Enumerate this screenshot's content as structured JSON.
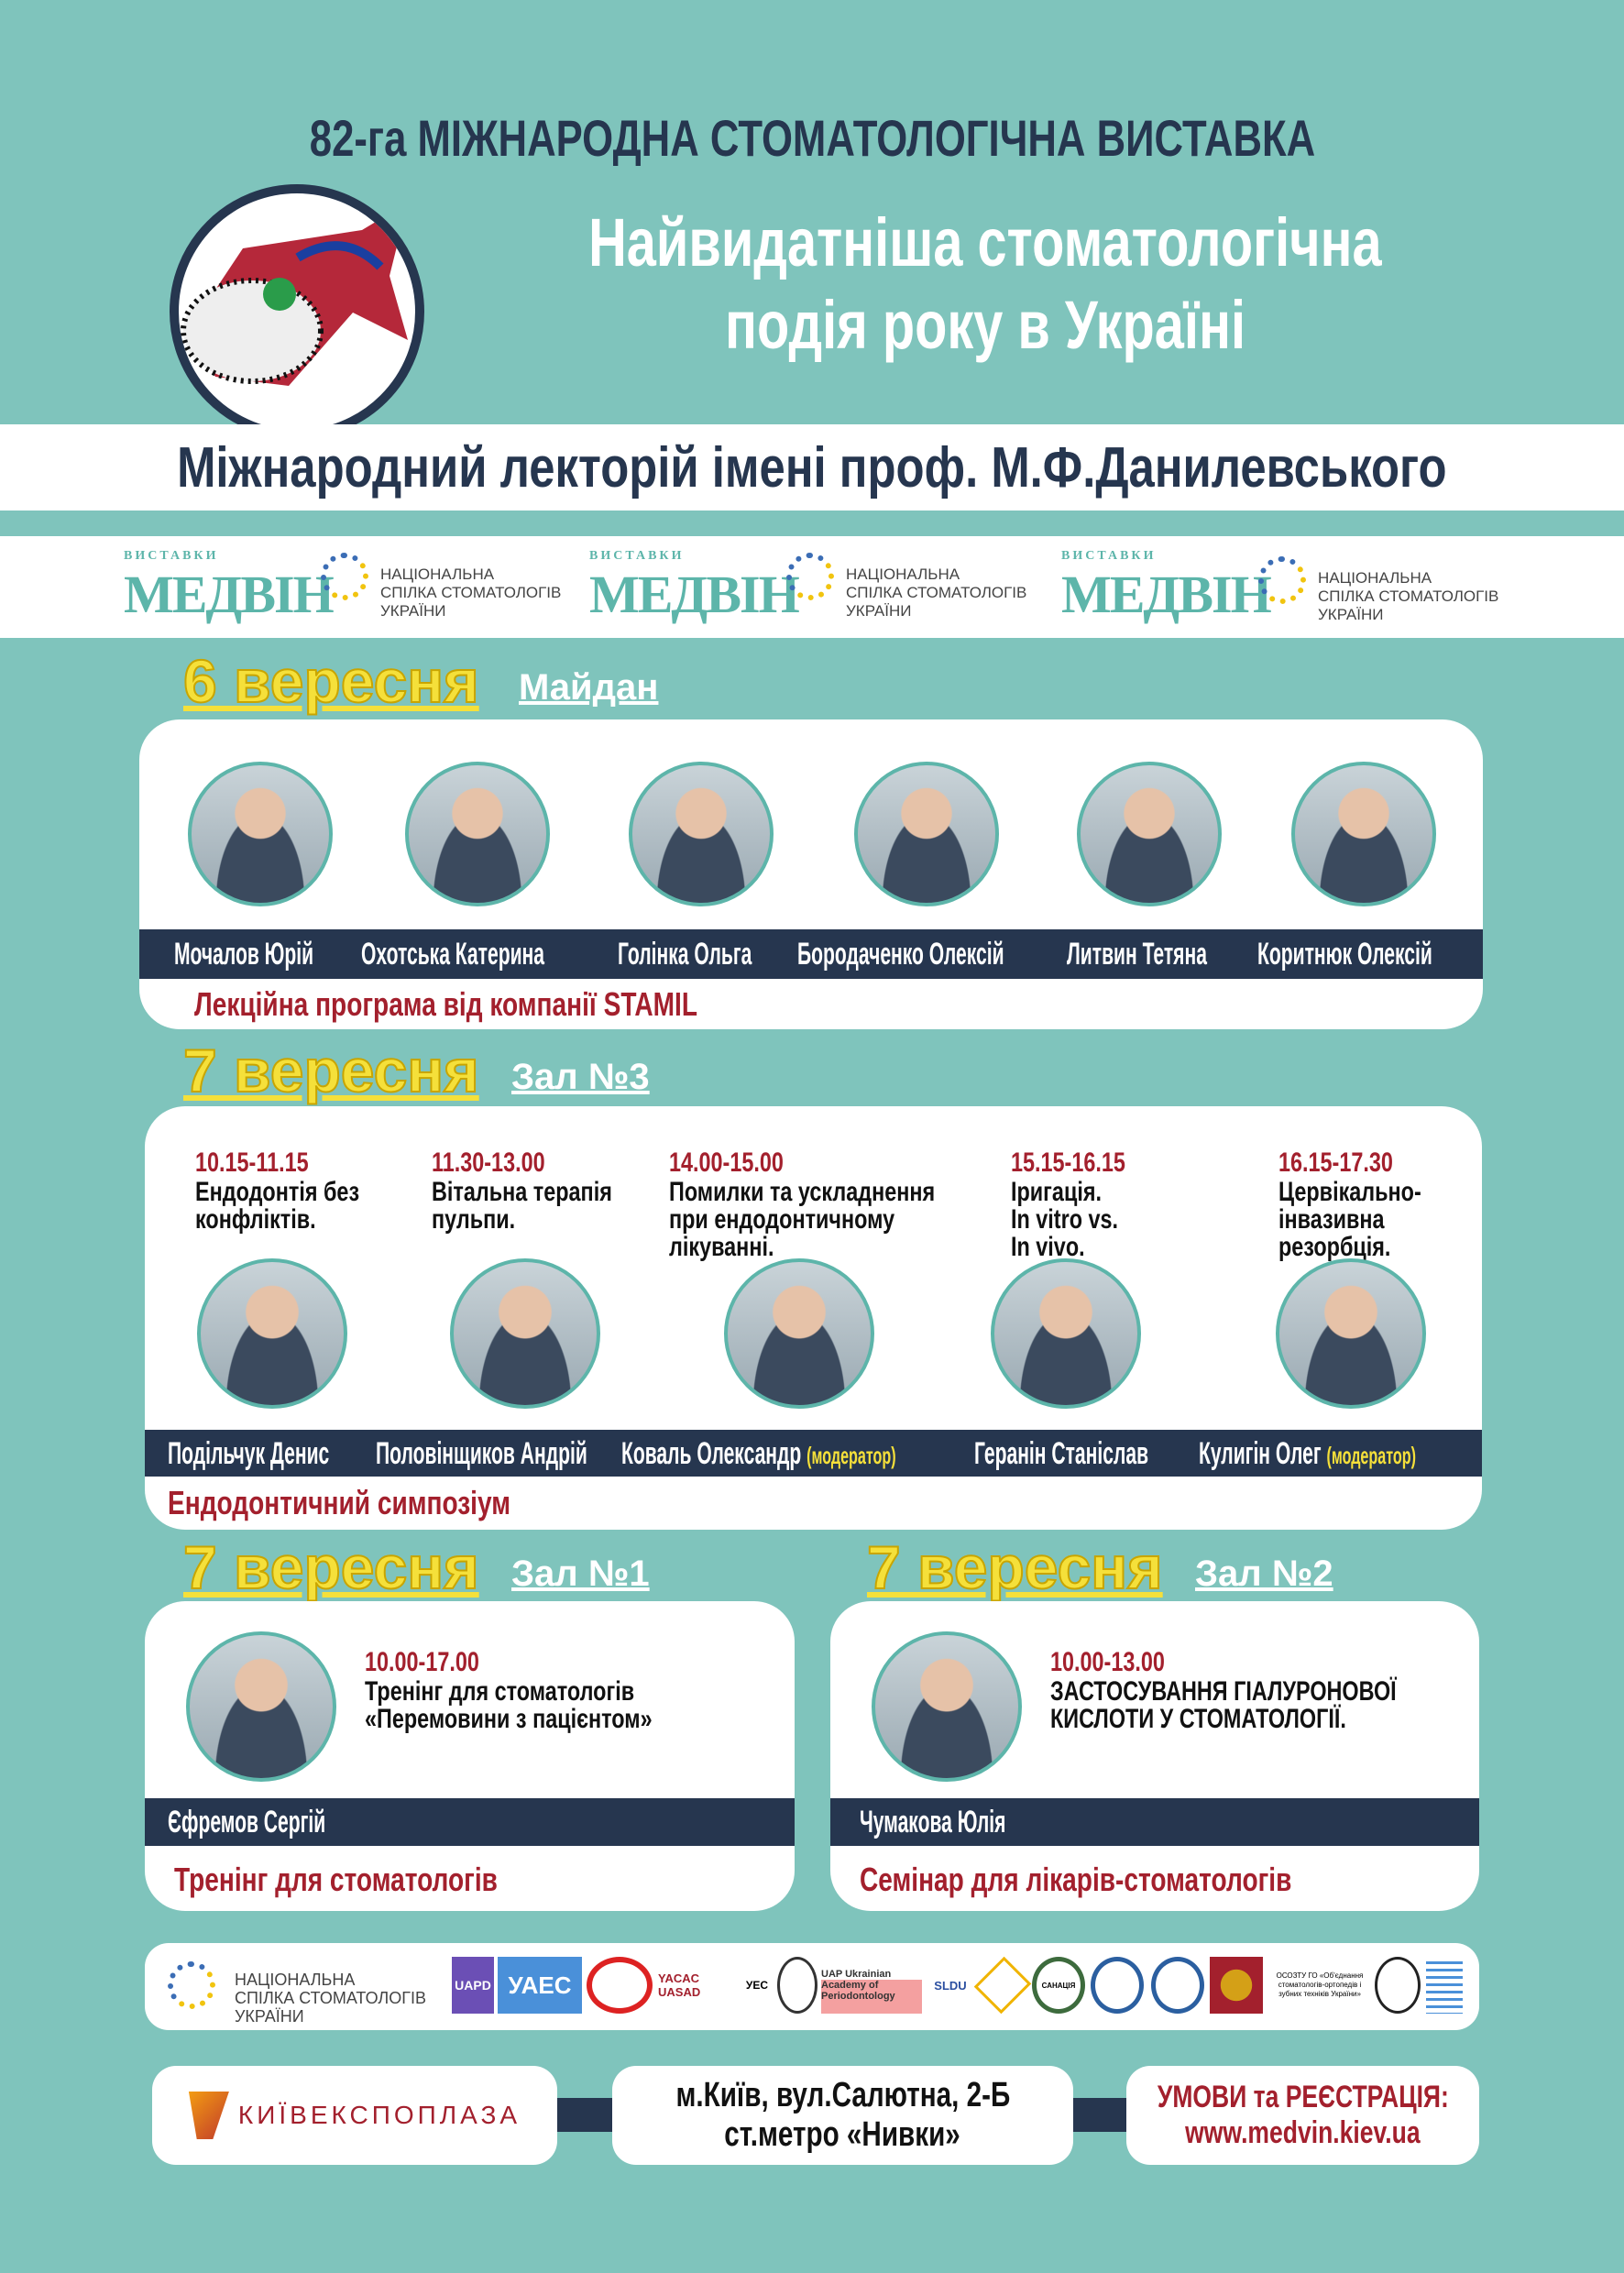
{
  "header": {
    "title": "82-га МІЖНАРОДНА СТОМАТОЛОГІЧНА ВИСТАВКА",
    "subtitle_line1": "Найвидатніша стоматологічна",
    "subtitle_line2": "подія року в Україні",
    "lectorium": "Міжнародний лекторій імені проф. М.Ф.Данилевського"
  },
  "logos_strip": [
    {
      "brand_small": "ВИСТАВКИ",
      "brand": "МЕДВІН",
      "nss": [
        "НАЦІОНАЛЬНА",
        "СПІЛКА СТОМАТОЛОГІВ",
        "УКРАЇНИ"
      ]
    },
    {
      "brand_small": "ВИСТАВКИ",
      "brand": "МЕДВІН",
      "nss": [
        "НАЦІОНАЛЬНА",
        "СПІЛКА СТОМАТОЛОГІВ",
        "УКРАЇНИ"
      ]
    },
    {
      "brand_small": "ВИСТАВКИ",
      "brand": "МЕДВІН",
      "nss": [
        "НАЦІОНАЛЬНА",
        "СПІЛКА СТОМАТОЛОГІВ",
        "УКРАЇНИ"
      ]
    }
  ],
  "day1": {
    "date": "6 вересня",
    "hall": "Майдан",
    "speakers": [
      "Мочалов Юрій",
      "Охотська Катерина",
      "Голінка Ольга",
      "Бородаченко Олексій",
      "Литвин Тетяна",
      "Коритнюк Олексій"
    ],
    "caption": "Лекційна програма від компанії STAMIL"
  },
  "day2": {
    "date": "7 вересня",
    "hall": "Зал №3",
    "sessions": [
      {
        "time": "10.15-11.15",
        "topic": [
          "Ендодонтія без",
          "конфліктів."
        ],
        "speaker": "Подільчук Денис",
        "role": ""
      },
      {
        "time": "11.30-13.00",
        "topic": [
          "Вітальна терапія",
          "пульпи."
        ],
        "speaker": "Половінщиков Андрій",
        "role": ""
      },
      {
        "time": "14.00-15.00",
        "topic": [
          "Помилки та ускладнення",
          "при ендодонтичному",
          "лікуванні."
        ],
        "speaker": "Коваль Олександр",
        "role": "(модератор)"
      },
      {
        "time": "15.15-16.15",
        "topic": [
          "Іригація.",
          "In vitro vs.",
          "In vivo."
        ],
        "speaker": "Геранін Станіслав",
        "role": ""
      },
      {
        "time": "16.15-17.30",
        "topic": [
          "Цервікально-",
          "інвазивна",
          "резорбція."
        ],
        "speaker": "Кулигін Олег",
        "role": "(модератор)"
      }
    ],
    "caption": "Ендодонтичний симпозіум"
  },
  "hall1": {
    "date": "7 вересня",
    "hall": "Зал №1",
    "time": "10.00-17.00",
    "topic": [
      "Тренінг для стоматологів",
      "«Перемовини з пацієнтом»"
    ],
    "speaker": "Єфремов Сергій",
    "caption": "Тренінг для стоматологів"
  },
  "hall2": {
    "date": "7 вересня",
    "hall": "Зал №2",
    "time": "10.00-13.00",
    "topic": [
      "ЗАСТОСУВАННЯ ГІАЛУРОНОВОЇ",
      "КИСЛОТИ У СТОМАТОЛОГІЇ."
    ],
    "speaker": "Чумакова Юлія",
    "caption": "Семінар для лікарів-стоматологів"
  },
  "partners": {
    "nss": [
      "НАЦІОНАЛЬНА",
      "СПІЛКА СТОМАТОЛОГІВ",
      "УКРАЇНИ"
    ],
    "logos": [
      "UAPD",
      "УАЕС",
      "",
      "YACAC UASAD",
      "УЕС",
      "",
      "UAP Ukrainian Academy of Periodontology",
      "SLDU",
      "",
      "САНАЦІЯ",
      "",
      "",
      "",
      "ОСОЗТУ ГО «Об'єднання стоматологів-ортопедів і зубних техніків України»",
      "",
      ""
    ]
  },
  "footer": {
    "venue_logo": "КИЇВЕКСПОПЛАЗА",
    "address_line1": "м.Київ, вул.Салютна, 2-Б",
    "address_line2": "ст.метро «Нивки»",
    "register_line1": "УМОВИ та РЕЄСТРАЦІЯ:",
    "register_line2": "www.medvin.kiev.ua"
  },
  "colors": {
    "background": "#7fc4bc",
    "navy": "#26364f",
    "yellow": "#f5e03a",
    "red": "#a3202d"
  }
}
